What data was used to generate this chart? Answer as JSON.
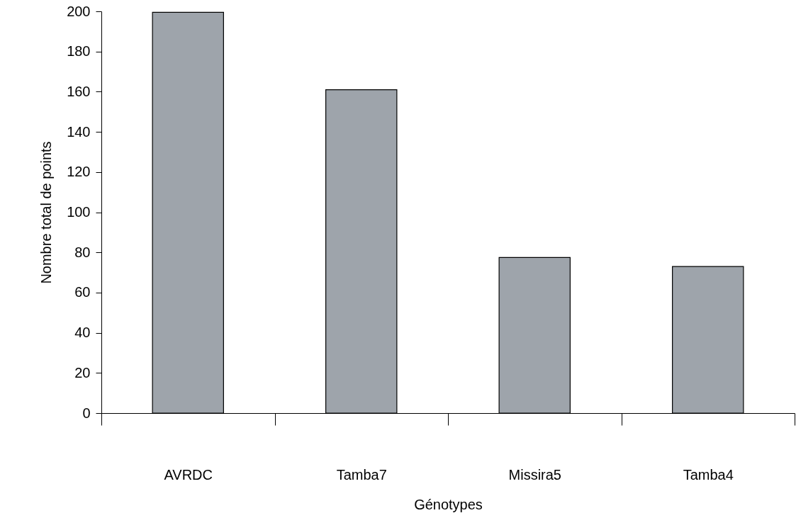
{
  "chart_data": {
    "type": "bar",
    "xlabel": "Génotypes",
    "ylabel": "Nombre total de points",
    "categories": [
      "AVRDC",
      "Tamba7",
      "Missira5",
      "Tamba4"
    ],
    "values": [
      199.5,
      161,
      77.5,
      73
    ],
    "color": "#9ea4ab",
    "ylim": [
      0,
      200
    ],
    "yticks": [
      0,
      20,
      40,
      60,
      80,
      100,
      120,
      140,
      160,
      180,
      200
    ]
  }
}
